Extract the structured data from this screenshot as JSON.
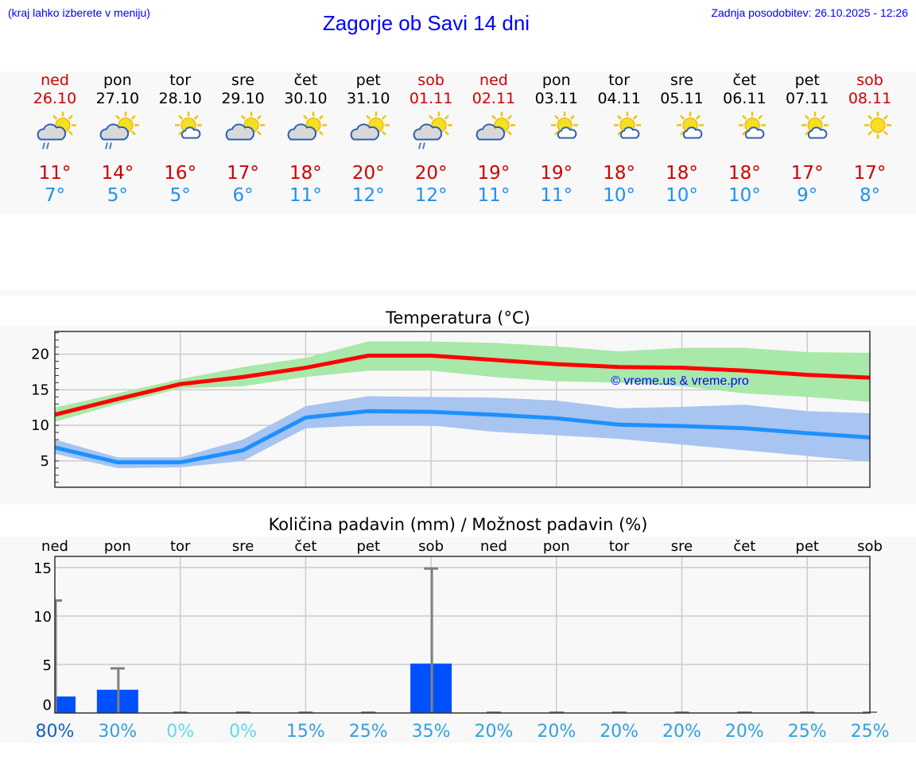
{
  "header": {
    "hint": "(kraj lahko izberete v meniju)",
    "title": "Zagorje ob Savi 14 dni",
    "updated": "Zadnja posodobitev: 26.10.2025 - 12:26"
  },
  "days": [
    {
      "name": "ned",
      "date": "26.10",
      "weekend": true,
      "icon": "sun-cloud-rain-icon",
      "hi": "11°",
      "lo": "7°"
    },
    {
      "name": "pon",
      "date": "27.10",
      "weekend": false,
      "icon": "sun-cloud-rain-icon",
      "hi": "14°",
      "lo": "5°"
    },
    {
      "name": "tor",
      "date": "28.10",
      "weekend": false,
      "icon": "sun-small-cloud-icon",
      "hi": "16°",
      "lo": "5°"
    },
    {
      "name": "sre",
      "date": "29.10",
      "weekend": false,
      "icon": "sun-cloud-icon",
      "hi": "17°",
      "lo": "6°"
    },
    {
      "name": "čet",
      "date": "30.10",
      "weekend": false,
      "icon": "sun-cloud-icon",
      "hi": "18°",
      "lo": "11°"
    },
    {
      "name": "pet",
      "date": "31.10",
      "weekend": false,
      "icon": "sun-cloud-icon",
      "hi": "20°",
      "lo": "12°"
    },
    {
      "name": "sob",
      "date": "01.11",
      "weekend": true,
      "icon": "sun-cloud-rain-icon",
      "hi": "20°",
      "lo": "12°"
    },
    {
      "name": "ned",
      "date": "02.11",
      "weekend": true,
      "icon": "sun-cloud-icon",
      "hi": "19°",
      "lo": "11°"
    },
    {
      "name": "pon",
      "date": "03.11",
      "weekend": false,
      "icon": "sun-small-cloud-icon",
      "hi": "19°",
      "lo": "11°"
    },
    {
      "name": "tor",
      "date": "04.11",
      "weekend": false,
      "icon": "sun-small-cloud-icon",
      "hi": "18°",
      "lo": "10°"
    },
    {
      "name": "sre",
      "date": "05.11",
      "weekend": false,
      "icon": "sun-small-cloud-icon",
      "hi": "18°",
      "lo": "10°"
    },
    {
      "name": "čet",
      "date": "06.11",
      "weekend": false,
      "icon": "sun-small-cloud-icon",
      "hi": "18°",
      "lo": "10°"
    },
    {
      "name": "pet",
      "date": "07.11",
      "weekend": false,
      "icon": "sun-small-cloud-icon",
      "hi": "17°",
      "lo": "9°"
    },
    {
      "name": "sob",
      "date": "08.11",
      "weekend": true,
      "icon": "sun-icon",
      "hi": "17°",
      "lo": "8°"
    }
  ],
  "chart_data": [
    {
      "type": "line",
      "title": "Temperatura (°C)",
      "ylim": [
        1.3,
        23.2
      ],
      "yticks": [
        5,
        10,
        15,
        20
      ],
      "watermark": "© vreme.us & vreme.pro",
      "series": [
        {
          "name": "max",
          "color": "#ff0000",
          "values": [
            11.5,
            13.7,
            15.8,
            16.8,
            18.1,
            19.8,
            19.8,
            19.2,
            18.6,
            18.2,
            18.1,
            17.7,
            17.1,
            16.7
          ],
          "band_high": [
            12.5,
            14.5,
            16.5,
            18.2,
            19.5,
            21.8,
            21.8,
            21.6,
            21.1,
            20.4,
            20.9,
            20.9,
            20.3,
            20.2
          ],
          "band_low": [
            10.5,
            13,
            15.2,
            15.5,
            16.8,
            17.7,
            17.7,
            16.8,
            16.2,
            16,
            15.5,
            14.5,
            14,
            13.3
          ],
          "band_color": "#a8e8a8"
        },
        {
          "name": "min",
          "color": "#1e90ff",
          "values": [
            6.9,
            4.8,
            4.8,
            6.5,
            11.1,
            12.0,
            11.9,
            11.5,
            11.0,
            10.1,
            9.9,
            9.6,
            8.9,
            8.3
          ],
          "band_high": [
            8,
            5.5,
            5.5,
            8,
            12.7,
            14.1,
            14,
            13.9,
            13.5,
            12.4,
            12.6,
            12.9,
            12,
            11.7
          ],
          "band_low": [
            6,
            4,
            4.1,
            5,
            9.6,
            10,
            10,
            9.1,
            8.6,
            8.1,
            7.3,
            6.5,
            5.7,
            4.9
          ],
          "band_color": "#a8c4f0"
        }
      ]
    },
    {
      "type": "bar",
      "title": "Količina padavin (mm) / Možnost padavin (%)",
      "ylim": [
        -0.8,
        16.1
      ],
      "yticks": [
        0,
        5,
        10,
        15
      ],
      "categories": [
        "ned",
        "pon",
        "tor",
        "sre",
        "čet",
        "pet",
        "sob",
        "ned",
        "pon",
        "tor",
        "sre",
        "čet",
        "pet",
        "sob"
      ],
      "values": [
        1.7,
        2.4,
        0,
        0,
        0,
        0,
        5.1,
        0,
        0,
        0,
        0,
        0,
        0,
        0
      ],
      "error_high": [
        11.6,
        4.6,
        0,
        0,
        0,
        0,
        14.9,
        0,
        0,
        0,
        0,
        0,
        0,
        0
      ],
      "probability": [
        "80%",
        "30%",
        "0%",
        "0%",
        "15%",
        "25%",
        "35%",
        "20%",
        "20%",
        "20%",
        "20%",
        "20%",
        "25%",
        "25%"
      ],
      "probability_colors": [
        "#1060c0",
        "#30a0e0",
        "#60d8f0",
        "#60d8f0",
        "#30a0e0",
        "#30a0e0",
        "#30a0e0",
        "#30a0e0",
        "#30a0e0",
        "#30a0e0",
        "#30a0e0",
        "#30a0e0",
        "#30a0e0",
        "#30a0e0"
      ],
      "bar_color": "#0050ff"
    }
  ]
}
